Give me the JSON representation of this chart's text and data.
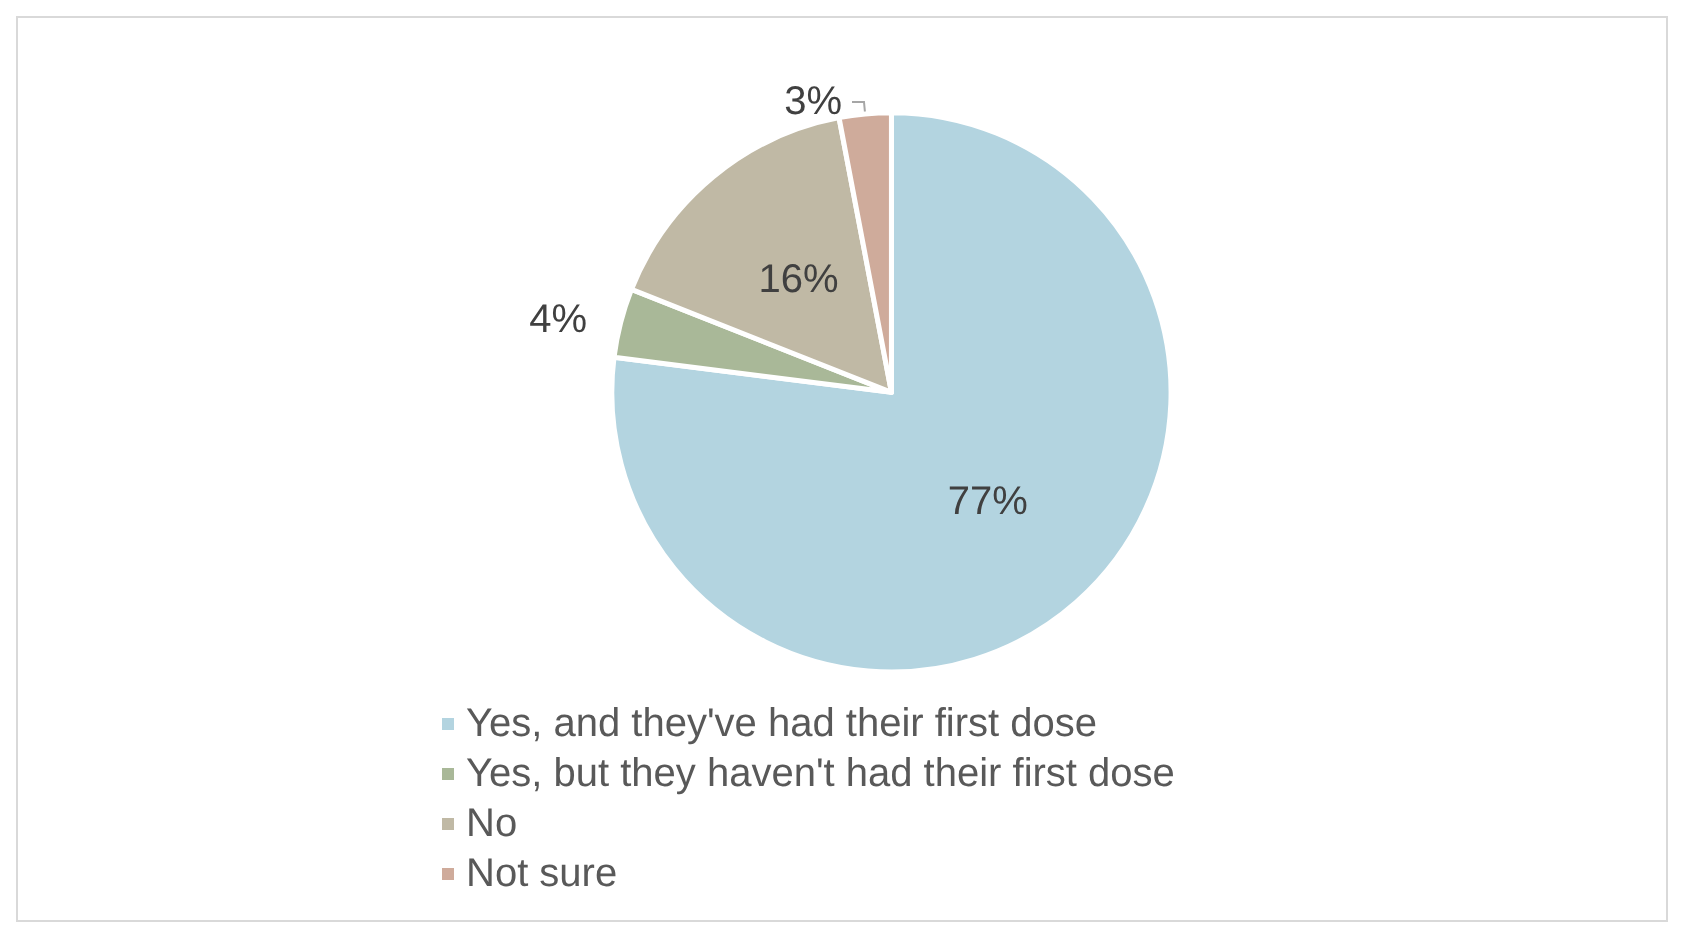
{
  "chart_data": {
    "type": "pie",
    "categories": [
      "Yes, and they've had their first dose",
      "Yes, but they haven't had their first dose",
      "No",
      "Not sure"
    ],
    "values": [
      77,
      4,
      16,
      3
    ],
    "colors": [
      "#b3d4e0",
      "#a9b898",
      "#c0b9a5",
      "#cfab9b"
    ],
    "value_labels": [
      "77%",
      "4%",
      "16%",
      "3%"
    ],
    "legend": "bottom"
  }
}
